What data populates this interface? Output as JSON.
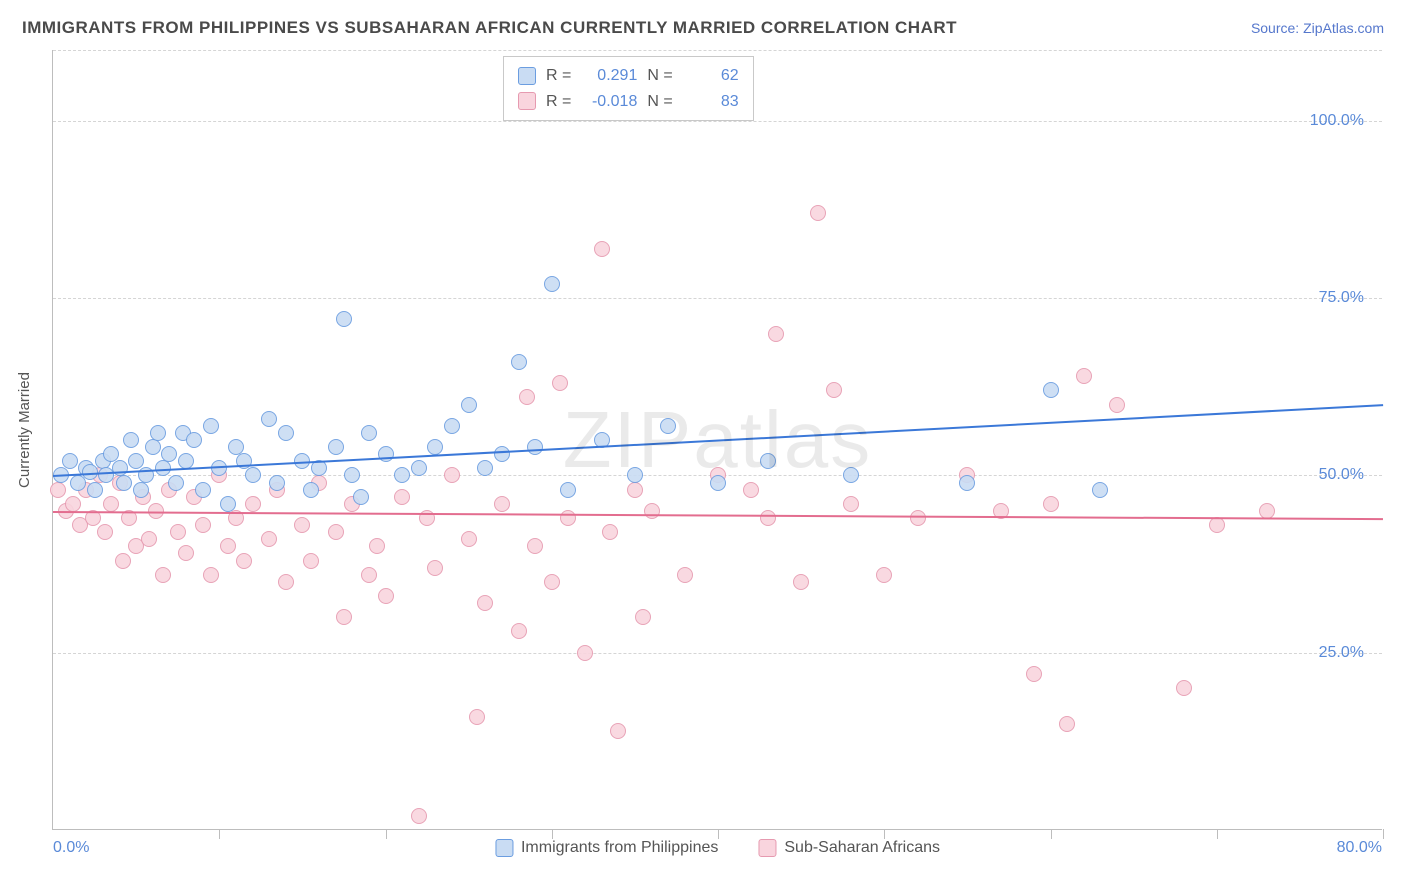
{
  "title": "IMMIGRANTS FROM PHILIPPINES VS SUBSAHARAN AFRICAN CURRENTLY MARRIED CORRELATION CHART",
  "source": "Source: ZipAtlas.com",
  "watermark": "ZIPatlas",
  "y_axis_title": "Currently Married",
  "chart": {
    "type": "scatter",
    "xlim": [
      0,
      80
    ],
    "ylim": [
      0,
      110
    ],
    "x_tick_step": 10,
    "x_min_label": "0.0%",
    "x_max_label": "80.0%",
    "y_ticks": [
      25,
      50,
      75,
      100
    ],
    "y_tick_labels": [
      "25.0%",
      "50.0%",
      "75.0%",
      "100.0%"
    ],
    "background_color": "#ffffff",
    "grid_color": "#d5d5d5",
    "axis_color": "#bdbdbd",
    "tick_label_color": "#5a8ad8",
    "marker_radius": 8,
    "marker_stroke_width": 1.5,
    "series": [
      {
        "name": "Immigrants from Philippines",
        "fill": "#c9dcf3",
        "stroke": "#6b9de0",
        "trend_color": "#3b78d8",
        "trend": {
          "x1": 0,
          "y1": 50,
          "x2": 80,
          "y2": 60
        },
        "R": "0.291",
        "N": "62",
        "points": [
          [
            0.5,
            50
          ],
          [
            1,
            52
          ],
          [
            1.5,
            49
          ],
          [
            2,
            51
          ],
          [
            2.2,
            50.5
          ],
          [
            2.5,
            48
          ],
          [
            3,
            52
          ],
          [
            3.2,
            50
          ],
          [
            3.5,
            53
          ],
          [
            4,
            51
          ],
          [
            4.3,
            49
          ],
          [
            4.7,
            55
          ],
          [
            5,
            52
          ],
          [
            5.3,
            48
          ],
          [
            5.6,
            50
          ],
          [
            6,
            54
          ],
          [
            6.3,
            56
          ],
          [
            6.6,
            51
          ],
          [
            7,
            53
          ],
          [
            7.4,
            49
          ],
          [
            7.8,
            56
          ],
          [
            8,
            52
          ],
          [
            8.5,
            55
          ],
          [
            9,
            48
          ],
          [
            9.5,
            57
          ],
          [
            10,
            51
          ],
          [
            10.5,
            46
          ],
          [
            11,
            54
          ],
          [
            11.5,
            52
          ],
          [
            12,
            50
          ],
          [
            13,
            58
          ],
          [
            13.5,
            49
          ],
          [
            14,
            56
          ],
          [
            15,
            52
          ],
          [
            15.5,
            48
          ],
          [
            16,
            51
          ],
          [
            17,
            54
          ],
          [
            17.5,
            72
          ],
          [
            18,
            50
          ],
          [
            18.5,
            47
          ],
          [
            19,
            56
          ],
          [
            20,
            53
          ],
          [
            21,
            50
          ],
          [
            22,
            51
          ],
          [
            23,
            54
          ],
          [
            24,
            57
          ],
          [
            25,
            60
          ],
          [
            26,
            51
          ],
          [
            27,
            53
          ],
          [
            28,
            66
          ],
          [
            29,
            54
          ],
          [
            30,
            77
          ],
          [
            31,
            48
          ],
          [
            33,
            55
          ],
          [
            35,
            50
          ],
          [
            37,
            57
          ],
          [
            40,
            49
          ],
          [
            43,
            52
          ],
          [
            48,
            50
          ],
          [
            55,
            49
          ],
          [
            60,
            62
          ],
          [
            63,
            48
          ]
        ]
      },
      {
        "name": "Sub-Saharan Africans",
        "fill": "#f9d5de",
        "stroke": "#e69ab0",
        "trend_color": "#e36d8f",
        "trend": {
          "x1": 0,
          "y1": 45,
          "x2": 80,
          "y2": 44
        },
        "R": "-0.018",
        "N": "83",
        "points": [
          [
            0.3,
            48
          ],
          [
            0.8,
            45
          ],
          [
            1.2,
            46
          ],
          [
            1.6,
            43
          ],
          [
            2,
            48
          ],
          [
            2.4,
            44
          ],
          [
            2.8,
            50
          ],
          [
            3.1,
            42
          ],
          [
            3.5,
            46
          ],
          [
            4,
            49
          ],
          [
            4.2,
            38
          ],
          [
            4.6,
            44
          ],
          [
            5,
            40
          ],
          [
            5.4,
            47
          ],
          [
            5.8,
            41
          ],
          [
            6.2,
            45
          ],
          [
            6.6,
            36
          ],
          [
            7,
            48
          ],
          [
            7.5,
            42
          ],
          [
            8,
            39
          ],
          [
            8.5,
            47
          ],
          [
            9,
            43
          ],
          [
            9.5,
            36
          ],
          [
            10,
            50
          ],
          [
            10.5,
            40
          ],
          [
            11,
            44
          ],
          [
            11.5,
            38
          ],
          [
            12,
            46
          ],
          [
            13,
            41
          ],
          [
            13.5,
            48
          ],
          [
            14,
            35
          ],
          [
            15,
            43
          ],
          [
            15.5,
            38
          ],
          [
            16,
            49
          ],
          [
            17,
            42
          ],
          [
            17.5,
            30
          ],
          [
            18,
            46
          ],
          [
            19,
            36
          ],
          [
            19.5,
            40
          ],
          [
            20,
            33
          ],
          [
            21,
            47
          ],
          [
            22,
            2
          ],
          [
            22.5,
            44
          ],
          [
            23,
            37
          ],
          [
            24,
            50
          ],
          [
            25,
            41
          ],
          [
            25.5,
            16
          ],
          [
            26,
            32
          ],
          [
            27,
            46
          ],
          [
            28,
            28
          ],
          [
            28.5,
            61
          ],
          [
            29,
            40
          ],
          [
            30,
            35
          ],
          [
            30.5,
            63
          ],
          [
            31,
            44
          ],
          [
            32,
            25
          ],
          [
            33,
            82
          ],
          [
            33.5,
            42
          ],
          [
            34,
            14
          ],
          [
            35,
            48
          ],
          [
            35.5,
            30
          ],
          [
            36,
            45
          ],
          [
            38,
            36
          ],
          [
            40,
            50
          ],
          [
            42,
            48
          ],
          [
            43,
            44
          ],
          [
            43.5,
            70
          ],
          [
            45,
            35
          ],
          [
            46,
            87
          ],
          [
            47,
            62
          ],
          [
            48,
            46
          ],
          [
            50,
            36
          ],
          [
            52,
            44
          ],
          [
            55,
            50
          ],
          [
            57,
            45
          ],
          [
            59,
            22
          ],
          [
            60,
            46
          ],
          [
            61,
            15
          ],
          [
            62,
            64
          ],
          [
            64,
            60
          ],
          [
            68,
            20
          ],
          [
            70,
            43
          ],
          [
            73,
            45
          ]
        ]
      }
    ]
  },
  "legend_stats": {
    "r_label": "R =",
    "n_label": "N ="
  },
  "bottom_legend": {
    "items": [
      "Immigrants from Philippines",
      "Sub-Saharan Africans"
    ]
  }
}
